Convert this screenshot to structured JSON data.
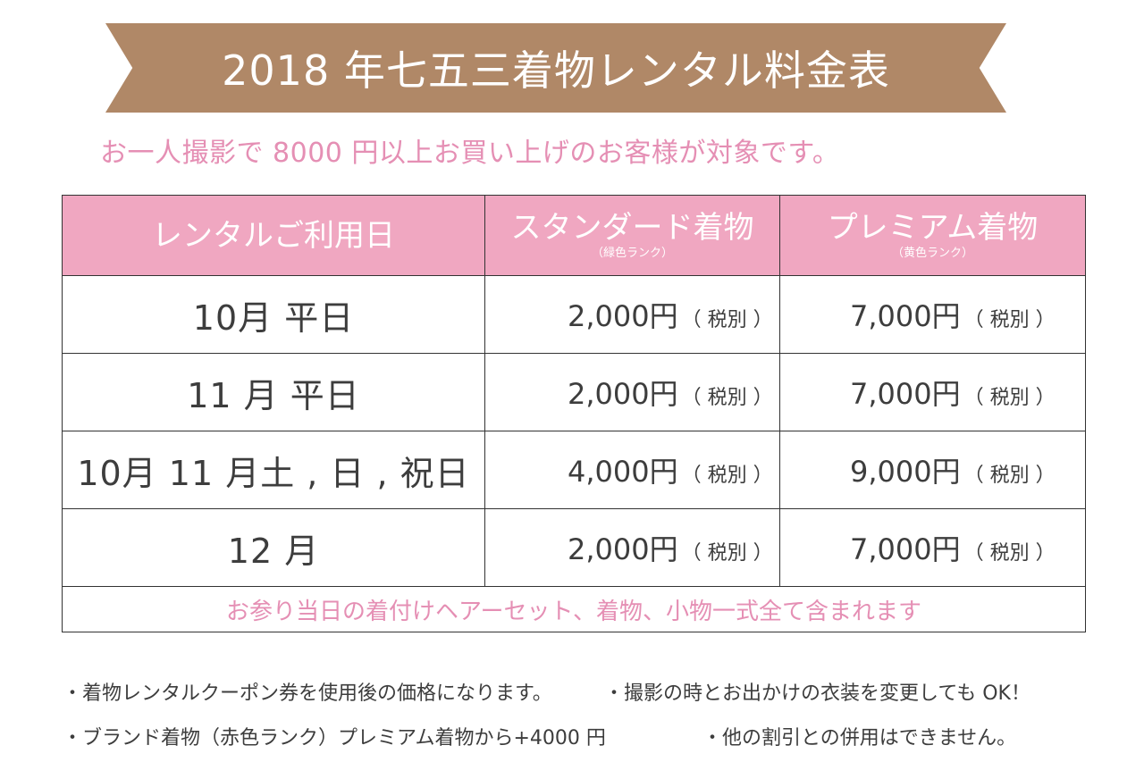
{
  "banner": {
    "title": "2018 年七五三着物レンタル料金表"
  },
  "subtitle": "お一人撮影で 8000 円以上お買い上げのお客様が対象です。",
  "table": {
    "headers": [
      {
        "label": "レンタルご利用日",
        "sub": ""
      },
      {
        "label": "スタンダード着物",
        "sub": "（緑色ランク）"
      },
      {
        "label": "プレミアム着物",
        "sub": "（黄色ランク）"
      }
    ],
    "rows": [
      {
        "date": "10月  平日",
        "standard": "2,000円",
        "premium": "7,000円",
        "tax": "（ 税別 ）"
      },
      {
        "date": "11 月  平日",
        "standard": "2,000円",
        "premium": "7,000円",
        "tax": "（ 税別 ）"
      },
      {
        "date": "10月 11 月土 , 日 , 祝日",
        "standard": "4,000円",
        "premium": "9,000円",
        "tax": "（ 税別 ）"
      },
      {
        "date": "12 月",
        "standard": "2,000円",
        "premium": "7,000円",
        "tax": "（ 税別 ）"
      }
    ],
    "footer": "お参り当日の着付けヘアーセット、着物、小物一式全て含まれます"
  },
  "notes": [
    "・着物レンタルクーポン券を使用後の価格になります。",
    "・撮影の時とお出かけの衣装を変更しても OK！",
    "・ブランド着物（赤色ランク）プレミアム着物から+4000 円",
    "・他の割引との併用はできません。"
  ],
  "colors": {
    "banner": "#b08867",
    "header": "#f0a7c1",
    "pink_text": "#e58fb4"
  }
}
